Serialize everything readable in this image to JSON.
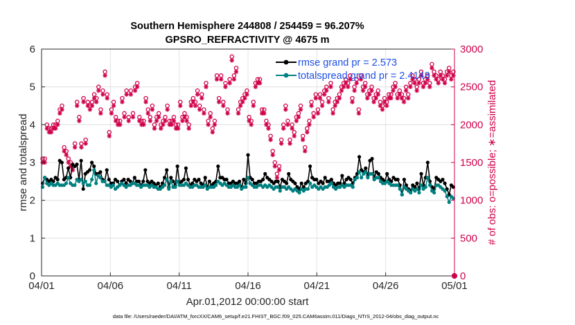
{
  "chart_data": {
    "type": "line",
    "title_line1": "Southern Hemisphere 244808 / 254459 = 96.207%",
    "title_line2": "GPSRO_REFRACTIVITY @ 4675 m",
    "xlabel": "Apr.01,2012 00:00:00 start",
    "ylabel_left": "rmse and totalspread",
    "ylabel_right": "# of obs: o=possible; ∗=assimilated",
    "x_ticks": [
      "04/01",
      "04/06",
      "04/11",
      "04/16",
      "04/21",
      "04/26",
      "05/01"
    ],
    "x_range_days": [
      0,
      30
    ],
    "y_left_ticks": [
      "0",
      "1",
      "2",
      "3",
      "4",
      "5",
      "6"
    ],
    "y_left_range": [
      0,
      6
    ],
    "y_right_ticks": [
      "0",
      "500",
      "1000",
      "1500",
      "2000",
      "2500",
      "3000"
    ],
    "y_right_range": [
      0,
      3000
    ],
    "footnote": "data file: /Users/raeder/DAI/ATM_forcXX/CAM6_setup/f.e21.FHIST_BGC.f09_025.CAM6assim.011/Diags_NTrS_2012-04/obs_diag_output.nc",
    "colors": {
      "rmse": "#000000",
      "spread": "#008080",
      "obs": "#d0004a",
      "legend_text": "#1f4ee6"
    },
    "series": [
      {
        "name": "rmse",
        "legend": "rmse grand pr = 2.573",
        "values": [
          2.45,
          2.6,
          2.55,
          2.5,
          2.55,
          2.5,
          2.6,
          2.55,
          3.05,
          3.0,
          2.55,
          2.6,
          2.85,
          2.6,
          2.95,
          2.9,
          2.95,
          2.55,
          3.05,
          2.3,
          2.7,
          2.75,
          2.8,
          3.0,
          2.9,
          2.7,
          2.7,
          2.75,
          2.55,
          2.5,
          2.8,
          2.55,
          2.45,
          2.45,
          2.55,
          2.5,
          2.4,
          2.5,
          2.55,
          2.45,
          2.55,
          2.5,
          2.45,
          2.6,
          2.5,
          2.5,
          2.4,
          2.5,
          2.8,
          2.5,
          2.45,
          2.5,
          2.45,
          2.4,
          2.45,
          2.35,
          2.45,
          2.6,
          2.8,
          2.35,
          2.6,
          2.5,
          2.4,
          2.9,
          2.45,
          2.5,
          2.55,
          2.85,
          2.55,
          2.4,
          2.45,
          2.55,
          2.5,
          2.55,
          2.45,
          2.4,
          2.6,
          2.35,
          2.5,
          2.4,
          2.45,
          2.5,
          2.9,
          2.6,
          2.6,
          2.55,
          2.55,
          2.45,
          2.45,
          2.5,
          2.45,
          2.45,
          2.5,
          2.35,
          2.55,
          2.45,
          3.2,
          2.6,
          2.55,
          2.45,
          2.45,
          2.5,
          2.5,
          2.55,
          2.7,
          2.6,
          2.55,
          2.5,
          2.45,
          2.5,
          2.5,
          2.35,
          2.55,
          2.5,
          2.45,
          2.7,
          2.55,
          2.5,
          2.45,
          2.35,
          2.3,
          2.45,
          2.35,
          2.45,
          2.5,
          2.9,
          2.6,
          2.55,
          2.55,
          2.45,
          2.5,
          2.45,
          2.6,
          2.5,
          2.5,
          2.55,
          2.45,
          2.4,
          2.45,
          2.45,
          2.65,
          2.45,
          2.55,
          2.6,
          2.55,
          2.45,
          2.6,
          2.7,
          3.15,
          2.8,
          2.75,
          2.85,
          2.65,
          3.05,
          3.1,
          2.6,
          2.75,
          2.7,
          2.6,
          2.55,
          2.5,
          2.7,
          2.55,
          2.5,
          2.6,
          2.55,
          2.55,
          2.4,
          2.15,
          2.55,
          2.4,
          2.3,
          2.25,
          2.4,
          2.35,
          2.45,
          2.3,
          2.7,
          2.4,
          2.6,
          3.0,
          2.5,
          2.35,
          2.3,
          2.6,
          2.55,
          2.5,
          2.55,
          2.45,
          2.3,
          2.15,
          2.4,
          2.35
        ]
      },
      {
        "name": "totalspread",
        "legend": "totalspread grand pr = 2.4148",
        "values": [
          2.35,
          2.6,
          2.45,
          2.4,
          2.45,
          2.4,
          2.4,
          2.45,
          2.4,
          2.4,
          2.4,
          2.45,
          2.6,
          2.45,
          2.4,
          2.4,
          2.55,
          2.5,
          2.55,
          2.45,
          2.5,
          2.4,
          2.4,
          2.55,
          2.8,
          2.45,
          2.65,
          2.6,
          2.5,
          2.5,
          2.4,
          2.4,
          2.35,
          2.4,
          2.3,
          2.35,
          2.4,
          2.45,
          2.4,
          2.35,
          2.4,
          2.4,
          2.45,
          2.45,
          2.4,
          2.4,
          2.35,
          2.4,
          2.4,
          2.4,
          2.35,
          2.4,
          2.35,
          2.35,
          2.3,
          2.3,
          2.35,
          2.4,
          2.55,
          2.3,
          2.5,
          2.35,
          2.35,
          2.5,
          2.4,
          2.4,
          2.4,
          2.45,
          2.4,
          2.35,
          2.35,
          2.4,
          2.4,
          2.35,
          2.35,
          2.35,
          2.4,
          2.3,
          2.35,
          2.35,
          2.35,
          2.4,
          2.5,
          2.45,
          2.4,
          2.45,
          2.4,
          2.35,
          2.35,
          2.4,
          2.35,
          2.35,
          2.4,
          2.3,
          2.35,
          2.35,
          2.6,
          2.45,
          2.4,
          2.35,
          2.35,
          2.4,
          2.4,
          2.35,
          2.4,
          2.35,
          2.4,
          2.35,
          2.3,
          2.35,
          2.35,
          2.25,
          2.35,
          2.35,
          2.3,
          2.35,
          2.3,
          2.25,
          2.3,
          2.25,
          2.2,
          2.3,
          2.25,
          2.3,
          2.3,
          2.45,
          2.35,
          2.4,
          2.35,
          2.3,
          2.35,
          2.3,
          2.35,
          2.35,
          2.4,
          2.45,
          2.35,
          2.3,
          2.35,
          2.35,
          2.4,
          2.35,
          2.4,
          2.4,
          2.4,
          2.35,
          2.55,
          2.6,
          2.75,
          2.6,
          2.7,
          2.75,
          2.6,
          2.7,
          2.7,
          2.55,
          2.6,
          2.6,
          2.5,
          2.45,
          2.45,
          2.5,
          2.45,
          2.4,
          2.4,
          2.4,
          2.4,
          2.3,
          2.15,
          2.35,
          2.3,
          2.25,
          2.2,
          2.3,
          2.25,
          2.3,
          2.2,
          2.4,
          2.3,
          2.35,
          2.6,
          2.4,
          2.25,
          2.2,
          2.4,
          2.4,
          2.35,
          2.3,
          2.25,
          2.1,
          1.95,
          2.1,
          2.05
        ]
      }
    ],
    "obs_possible": [
      1550,
      1550,
      2000,
      1950,
      1950,
      2000,
      2000,
      2050,
      2200,
      2250,
      1700,
      1650,
      1550,
      1500,
      1450,
      1750,
      2300,
      2100,
      1750,
      2350,
      1800,
      2300,
      2250,
      2300,
      2400,
      2350,
      2500,
      2200,
      2450,
      2700,
      2400,
      1900,
      2200,
      2300,
      2100,
      2050,
      2050,
      2350,
      2150,
      2450,
      2100,
      2450,
      2150,
      2500,
      2550,
      2100,
      2050,
      2050,
      2350,
      2200,
      2100,
      2250,
      2000,
      2100,
      2150,
      2000,
      2050,
      2100,
      2250,
      2050,
      2050,
      2100,
      2000,
      2000,
      2300,
      2100,
      2150,
      2100,
      2000,
      2300,
      2350,
      2300,
      2450,
      2250,
      2400,
      2200,
      2550,
      2050,
      2150,
      1950,
      2050,
      2650,
      2350,
      2650,
      2300,
      2550,
      2200,
      2600,
      2900,
      2650,
      2750,
      2200,
      2300,
      2350,
      2400,
      2450,
      2100,
      2050,
      2300,
      2550,
      2600,
      2600,
      2200,
      2200,
      2050,
      2000,
      1850,
      1650,
      1500,
      1350,
      1450,
      1800,
      2000,
      2250,
      2050,
      1800,
      2000,
      1900,
      2100,
      2150,
      2250,
      1850,
      1700,
      1950,
      2050,
      2300,
      2150,
      2400,
      2200,
      2400,
      2300,
      2450,
      2500,
      2350,
      2550,
      2200,
      2300,
      2350,
      2400,
      2500,
      2550,
      2600,
      2550,
      2650,
      2350,
      2500,
      2600,
      2200,
      2650,
      2500,
      2550,
      2400,
      2450,
      2500,
      2350,
      2400,
      2450,
      2300,
      2250,
      2350,
      2300,
      2400,
      2400,
      2500,
      2550,
      2400,
      2450,
      2400,
      2350,
      2500,
      2400,
      2550,
      2650,
      2600,
      2500,
      2600,
      2700,
      2550,
      2600,
      2650,
      2550,
      2800,
      2700,
      2650,
      2600,
      2700,
      2650,
      2600,
      2700,
      2750,
      2650,
      2700
    ],
    "obs_assimilated": [
      1500,
      1500,
      1950,
      1900,
      1900,
      1950,
      1950,
      2000,
      2150,
      2200,
      1650,
      1600,
      1500,
      1450,
      1400,
      1700,
      2250,
      2050,
      1700,
      2300,
      1750,
      2250,
      2200,
      2250,
      2350,
      2300,
      2450,
      2150,
      2400,
      2650,
      2350,
      1850,
      2150,
      2250,
      2050,
      2000,
      2000,
      2300,
      2100,
      2400,
      2050,
      2400,
      2100,
      2450,
      2500,
      2050,
      2000,
      2000,
      2300,
      2150,
      2050,
      2200,
      1950,
      2050,
      2100,
      1950,
      2000,
      2050,
      2200,
      2000,
      2000,
      2050,
      1950,
      1950,
      2250,
      2050,
      2100,
      2050,
      1950,
      2250,
      2300,
      2250,
      2400,
      2200,
      2350,
      2150,
      2500,
      2000,
      2100,
      1900,
      2000,
      2600,
      2300,
      2600,
      2250,
      2500,
      2150,
      2550,
      2850,
      2600,
      2700,
      2150,
      2250,
      2300,
      2350,
      2400,
      2050,
      2000,
      2250,
      2500,
      2550,
      2550,
      2150,
      2150,
      2000,
      1950,
      1800,
      1600,
      1450,
      1300,
      1400,
      1750,
      1950,
      2200,
      2000,
      1750,
      1950,
      1850,
      2050,
      2100,
      2200,
      1800,
      1650,
      1900,
      2000,
      2250,
      2100,
      2350,
      2150,
      2350,
      2250,
      2400,
      2450,
      2300,
      2500,
      2150,
      2250,
      2300,
      2350,
      2450,
      2500,
      2550,
      2500,
      2600,
      2300,
      2450,
      2550,
      2150,
      2600,
      2450,
      2500,
      2350,
      2400,
      2450,
      2300,
      2350,
      2400,
      2250,
      2200,
      2300,
      2250,
      2350,
      2350,
      2450,
      2500,
      2350,
      2400,
      2350,
      2300,
      2450,
      2350,
      2500,
      2600,
      2550,
      2450,
      2550,
      2650,
      2500,
      2550,
      2600,
      2500,
      2750,
      2650,
      2600,
      2550,
      2650,
      2600,
      2550,
      2650,
      2700,
      2600,
      2650
    ],
    "obs_zero_marker": {
      "x_day": 30,
      "value": 0
    }
  }
}
